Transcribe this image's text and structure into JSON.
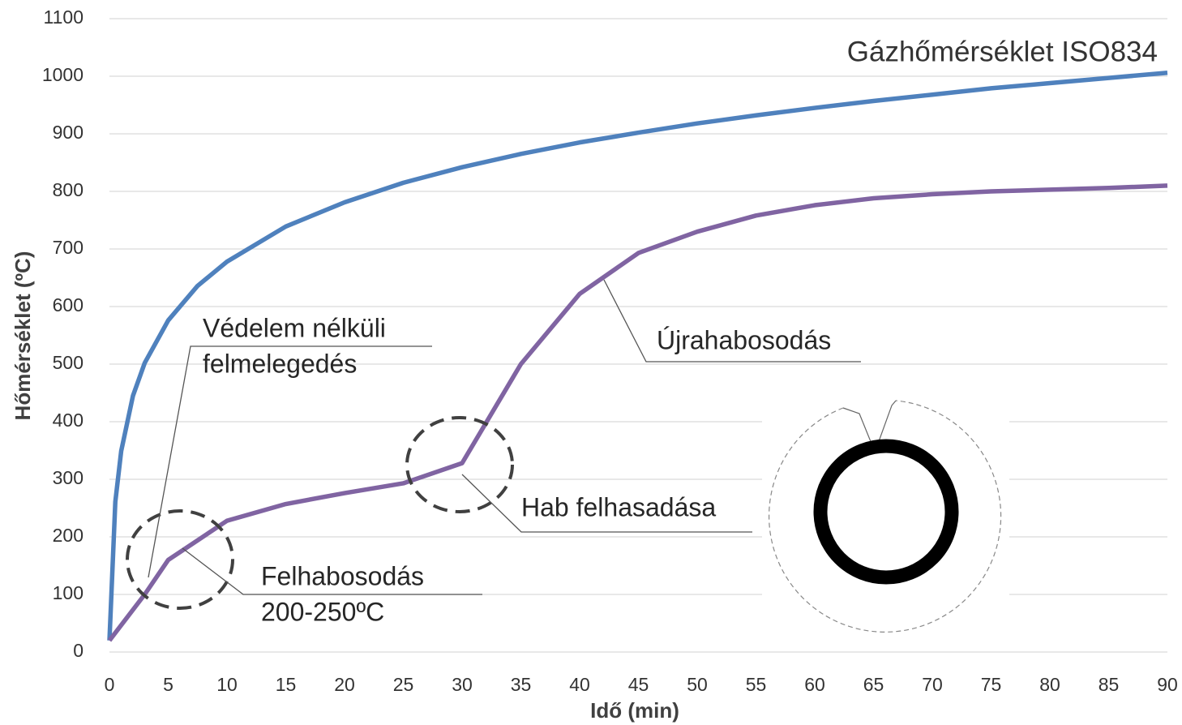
{
  "chart_data": {
    "type": "line",
    "x_label": "Idő (min)",
    "y_label": "Hőmérséklet (ºC)",
    "xlim": [
      0,
      90
    ],
    "xticks": [
      0,
      5,
      10,
      15,
      20,
      25,
      30,
      35,
      40,
      45,
      50,
      55,
      60,
      65,
      70,
      75,
      80,
      85,
      90
    ],
    "ylim": [
      0,
      1100
    ],
    "yticks": [
      0,
      100,
      200,
      300,
      400,
      500,
      600,
      700,
      800,
      900,
      1000,
      1100
    ],
    "grid": true,
    "series": [
      {
        "name": "Gázhőmérséklet ISO834",
        "color": "#4f81bd",
        "x": [
          0,
          0.5,
          1,
          2,
          3,
          5,
          7.5,
          10,
          15,
          20,
          25,
          30,
          35,
          40,
          45,
          50,
          55,
          60,
          65,
          70,
          75,
          80,
          85,
          90
        ],
        "values": [
          20,
          261,
          349,
          445,
          502,
          576,
          636,
          678,
          739,
          781,
          815,
          842,
          865,
          885,
          902,
          918,
          932,
          945,
          957,
          968,
          979,
          988,
          997,
          1006
        ]
      },
      {
        "name": null,
        "color": "#8064a2",
        "x": [
          0,
          3,
          5,
          10,
          15,
          20,
          25,
          30,
          35,
          40,
          45,
          50,
          55,
          60,
          65,
          70,
          75,
          80,
          85,
          90
        ],
        "values": [
          20,
          100,
          160,
          228,
          257,
          276,
          293,
          328,
          500,
          622,
          693,
          730,
          758,
          776,
          788,
          795,
          800,
          803,
          806,
          810
        ]
      }
    ],
    "annotations": [
      {
        "lines": [
          "Védelem nélküli",
          "felmelegedés"
        ]
      },
      {
        "lines": [
          "Újrahabosodás"
        ]
      },
      {
        "lines": [
          "Hab felhasadása"
        ]
      },
      {
        "lines": [
          "Felhabosodás",
          "200-250ºC"
        ]
      }
    ]
  }
}
